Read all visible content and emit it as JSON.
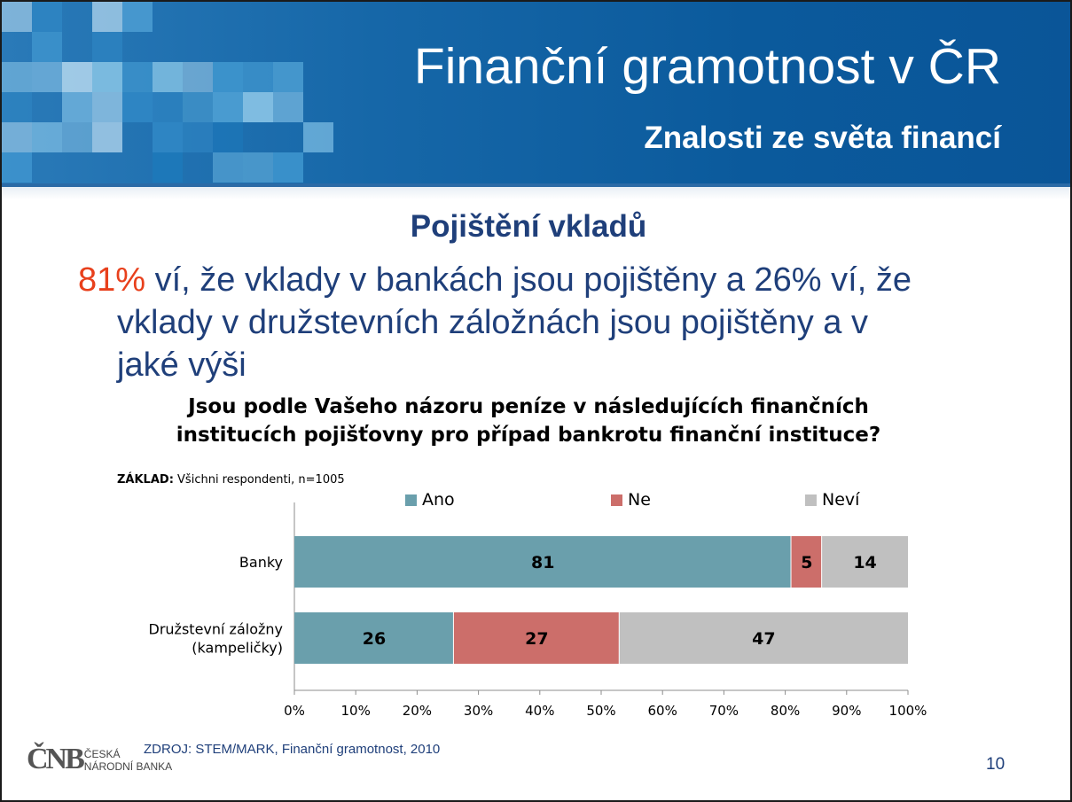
{
  "slide": {
    "title": "Finanční gramotnost v ČR",
    "subtitle": "Znalosti ze světa financí",
    "section_title": "Pojištění vkladů",
    "lead_highlight": "81%",
    "lead_line1_rest": " ví, že vklady v bankách jsou pojištěny a 26% ví, že",
    "lead_line2": "vklady v družstevních záložnách jsou pojištěny a v",
    "lead_line3": "jaké výši",
    "question_line1": "Jsou podle Vašeho názoru peníze v následujících finančních",
    "question_line2": "institucích pojišťovny pro případ bankrotu finanční instituce?",
    "base_label": "ZÁKLAD:",
    "base_text": " Všichni respondenti, n=1005",
    "source": "ZDROJ: STEM/MARK, Finanční gramotnost, 2010",
    "page_number": "10",
    "logo_mark": "ČNB",
    "logo_line1": "ČESKÁ",
    "logo_line2": "NÁRODNÍ BANKA",
    "colors": {
      "header_blue": "#0b5a9c",
      "text_blue": "#1f3f7a",
      "highlight_red": "#e8401c"
    }
  },
  "chart_data": {
    "type": "bar",
    "orientation": "horizontal",
    "stacked": true,
    "categories": [
      "Banky",
      "Družstevní záložny (kampeličky)"
    ],
    "category_lines": [
      [
        "Banky"
      ],
      [
        "Družstevní záložny",
        "(kampeličky)"
      ]
    ],
    "series": [
      {
        "name": "Ano",
        "values": [
          81,
          26
        ],
        "color": "#6a9fac"
      },
      {
        "name": "Ne",
        "values": [
          5,
          27
        ],
        "color": "#cc6e6a"
      },
      {
        "name": "Neví",
        "values": [
          14,
          47
        ],
        "color": "#c0c0c0"
      }
    ],
    "xlim": [
      0,
      100
    ],
    "x_ticks": [
      "0%",
      "10%",
      "20%",
      "30%",
      "40%",
      "50%",
      "60%",
      "70%",
      "80%",
      "90%",
      "100%"
    ],
    "legend_position": "top",
    "grid": false
  }
}
